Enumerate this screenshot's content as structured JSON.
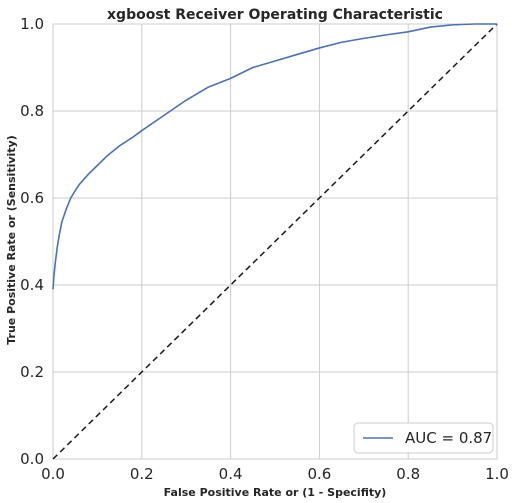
{
  "chart_data": {
    "type": "line",
    "title": "xgboost Receiver Operating Characteristic",
    "xlabel": "False Positive Rate or (1 - Specifity)",
    "ylabel": "True Positive Rate or (Sensitivity)",
    "xlim": [
      0,
      1
    ],
    "ylim": [
      0,
      1
    ],
    "x_ticks": [
      "0.0",
      "0.2",
      "0.4",
      "0.6",
      "0.8",
      "1.0"
    ],
    "y_ticks": [
      "0.0",
      "0.2",
      "0.4",
      "0.6",
      "0.8",
      "1.0"
    ],
    "grid": true,
    "legend_position": "lower-right",
    "series": [
      {
        "name": "AUC = 0.87",
        "color": "#4c72b0",
        "style": "solid",
        "x": [
          0.0,
          0.002,
          0.005,
          0.01,
          0.015,
          0.02,
          0.03,
          0.04,
          0.05,
          0.06,
          0.08,
          0.1,
          0.12,
          0.15,
          0.18,
          0.2,
          0.25,
          0.3,
          0.35,
          0.4,
          0.45,
          0.5,
          0.55,
          0.6,
          0.65,
          0.7,
          0.75,
          0.8,
          0.85,
          0.9,
          0.95,
          1.0
        ],
        "y": [
          0.39,
          0.42,
          0.45,
          0.49,
          0.52,
          0.545,
          0.575,
          0.6,
          0.617,
          0.632,
          0.655,
          0.675,
          0.695,
          0.72,
          0.74,
          0.755,
          0.79,
          0.825,
          0.855,
          0.875,
          0.9,
          0.915,
          0.93,
          0.945,
          0.958,
          0.967,
          0.975,
          0.982,
          0.993,
          0.998,
          1.0,
          1.0
        ]
      }
    ],
    "reference_line": {
      "x": [
        0,
        1
      ],
      "y": [
        0,
        1
      ],
      "color": "#1a1a1a",
      "style": "dashed"
    }
  }
}
